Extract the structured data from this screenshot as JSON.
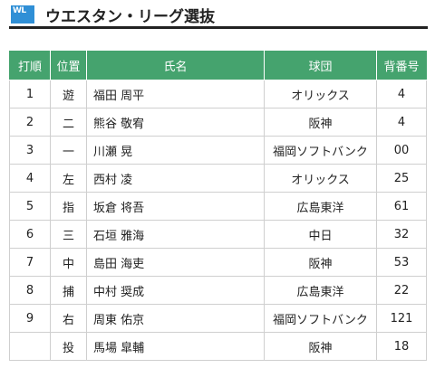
{
  "header": {
    "logo_text": "WL",
    "title": "ウエスタン・リーグ選抜"
  },
  "colors": {
    "header_bg": "#45a36e",
    "logo_bg": "#2f8fd6"
  },
  "table": {
    "columns": [
      "打順",
      "位置",
      "氏名",
      "球団",
      "背番号"
    ],
    "rows": [
      {
        "order": "1",
        "position": "遊",
        "name": "福田 周平",
        "team": "オリックス",
        "number": "4"
      },
      {
        "order": "2",
        "position": "二",
        "name": "熊谷 敬宥",
        "team": "阪神",
        "number": "4"
      },
      {
        "order": "3",
        "position": "一",
        "name": "川瀬 晃",
        "team": "福岡ソフトバンク",
        "number": "00"
      },
      {
        "order": "4",
        "position": "左",
        "name": "西村 凌",
        "team": "オリックス",
        "number": "25"
      },
      {
        "order": "5",
        "position": "指",
        "name": "坂倉 将吾",
        "team": "広島東洋",
        "number": "61"
      },
      {
        "order": "6",
        "position": "三",
        "name": "石垣 雅海",
        "team": "中日",
        "number": "32"
      },
      {
        "order": "7",
        "position": "中",
        "name": "島田 海吏",
        "team": "阪神",
        "number": "53"
      },
      {
        "order": "8",
        "position": "捕",
        "name": "中村 奨成",
        "team": "広島東洋",
        "number": "22"
      },
      {
        "order": "9",
        "position": "右",
        "name": "周東 佑京",
        "team": "福岡ソフトバンク",
        "number": "121"
      },
      {
        "order": "",
        "position": "投",
        "name": "馬場 皐輔",
        "team": "阪神",
        "number": "18"
      }
    ]
  }
}
